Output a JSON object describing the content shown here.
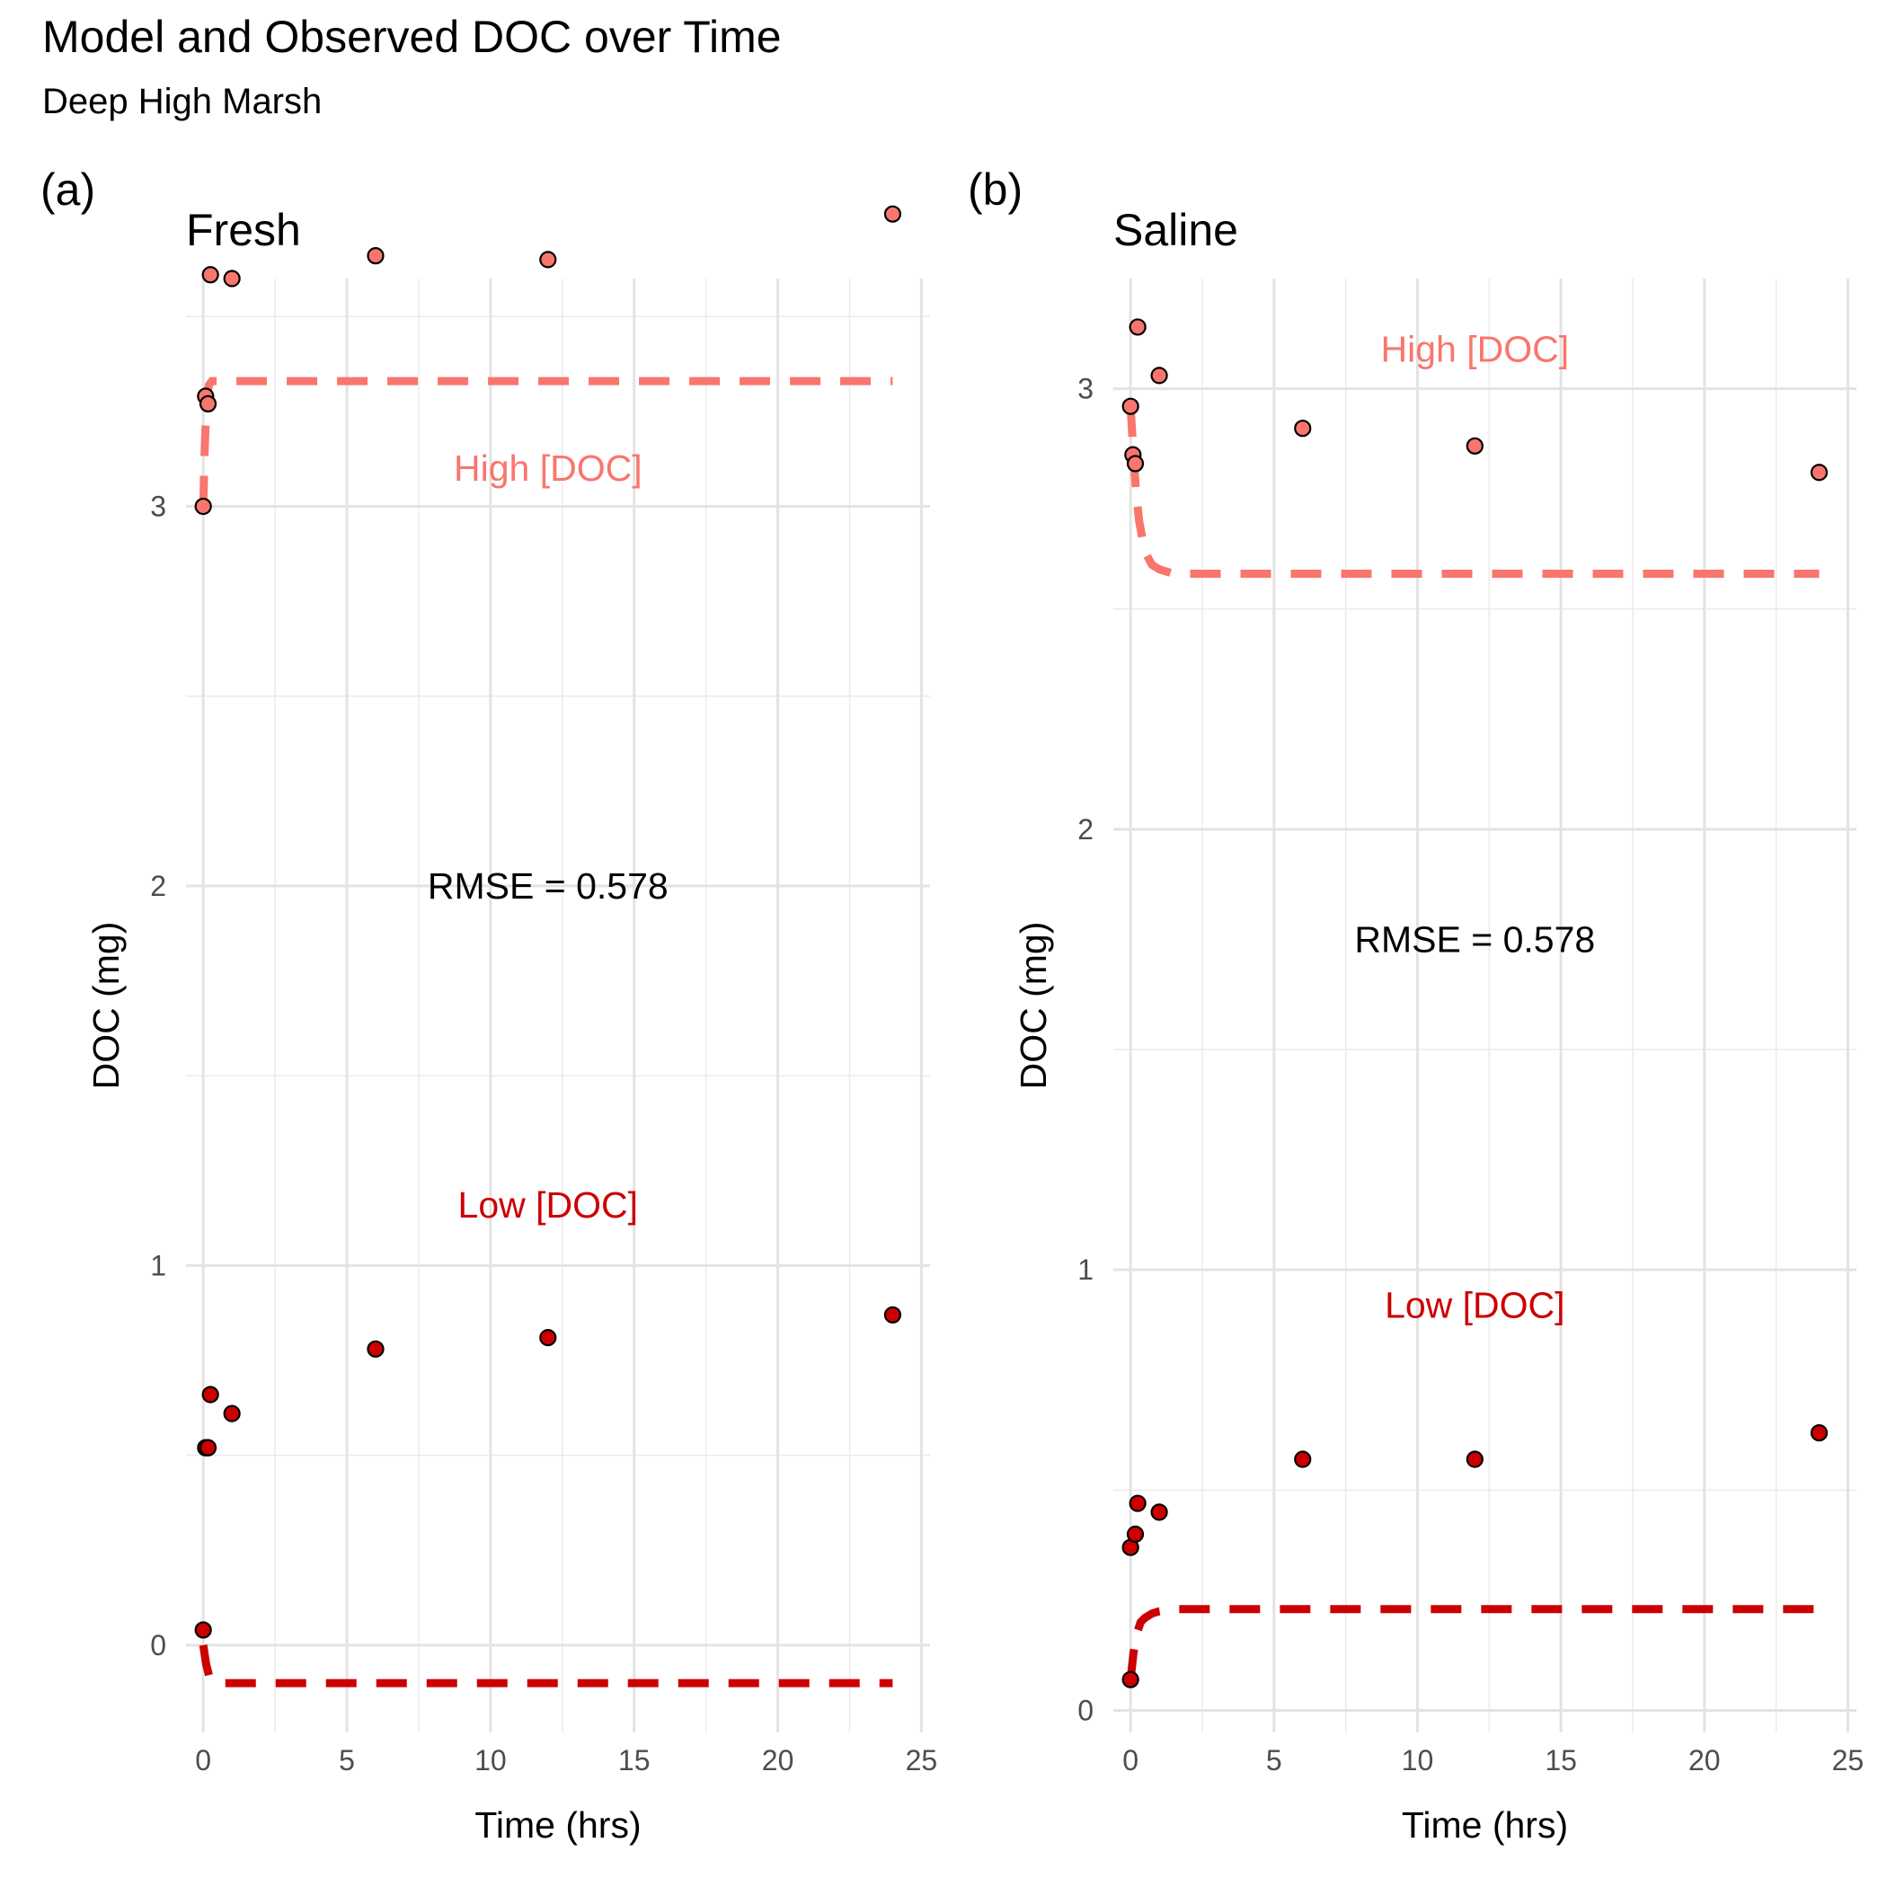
{
  "title": "Model and Observed DOC over Time",
  "subtitle": "Deep High Marsh",
  "chart_data": [
    {
      "type": "scatter",
      "tag": "(a)",
      "title": "Fresh",
      "xlabel": "Time (hrs)",
      "ylabel": "DOC (mg)",
      "xlim": [
        -0.6,
        25.3
      ],
      "ylim": [
        -0.23,
        3.6
      ],
      "x_ticks": [
        0,
        5,
        10,
        15,
        20,
        25
      ],
      "y_ticks": [
        0,
        1,
        2,
        3
      ],
      "x_tick_labels": [
        "0",
        "5",
        "10",
        "15",
        "20",
        "25"
      ],
      "y_tick_labels": [
        "0",
        "1",
        "2",
        "3"
      ],
      "grid": true,
      "rmse_label": "RMSE = 0.578",
      "rmse_pos": [
        12,
        2.0
      ],
      "series": [
        {
          "name": "High [DOC]",
          "color": "#F8766D",
          "label_pos": [
            12,
            3.1
          ],
          "points": [
            [
              0,
              3.0
            ],
            [
              0.083,
              3.29
            ],
            [
              0.167,
              3.27
            ],
            [
              0.25,
              3.61
            ],
            [
              1,
              3.6
            ],
            [
              6,
              3.66
            ],
            [
              12,
              3.65
            ],
            [
              24,
              3.77
            ]
          ],
          "model": [
            [
              0,
              3.0
            ],
            [
              0.05,
              3.15
            ],
            [
              0.1,
              3.25
            ],
            [
              0.15,
              3.3
            ],
            [
              0.2,
              3.32
            ],
            [
              0.3,
              3.33
            ],
            [
              0.5,
              3.33
            ],
            [
              24,
              3.33
            ]
          ]
        },
        {
          "name": "Low [DOC]",
          "color": "#CC0000",
          "label_pos": [
            12,
            1.16
          ],
          "points": [
            [
              0,
              0.04
            ],
            [
              0.083,
              0.52
            ],
            [
              0.167,
              0.52
            ],
            [
              0.25,
              0.66
            ],
            [
              1,
              0.61
            ],
            [
              6,
              0.78
            ],
            [
              12,
              0.81
            ],
            [
              24,
              0.87
            ]
          ],
          "model": [
            [
              0,
              0.0
            ],
            [
              0.1,
              -0.05
            ],
            [
              0.2,
              -0.08
            ],
            [
              0.3,
              -0.09
            ],
            [
              0.5,
              -0.1
            ],
            [
              1,
              -0.1
            ],
            [
              24,
              -0.1
            ]
          ]
        }
      ]
    },
    {
      "type": "scatter",
      "tag": "(b)",
      "title": "Saline",
      "xlabel": "Time (hrs)",
      "ylabel": "DOC (mg)",
      "xlim": [
        -0.6,
        25.3
      ],
      "ylim": [
        -0.05,
        3.25
      ],
      "x_ticks": [
        0,
        5,
        10,
        15,
        20,
        25
      ],
      "y_ticks": [
        0,
        1,
        2,
        3
      ],
      "x_tick_labels": [
        "0",
        "5",
        "10",
        "15",
        "20",
        "25"
      ],
      "y_tick_labels": [
        "0",
        "1",
        "2",
        "3"
      ],
      "grid": true,
      "rmse_label": "RMSE = 0.578",
      "rmse_pos": [
        12,
        1.75
      ],
      "series": [
        {
          "name": "High [DOC]",
          "color": "#F8766D",
          "label_pos": [
            12,
            3.09
          ],
          "points": [
            [
              0,
              2.96
            ],
            [
              0.083,
              2.85
            ],
            [
              0.167,
              2.83
            ],
            [
              0.25,
              3.14
            ],
            [
              1,
              3.03
            ],
            [
              6,
              2.91
            ],
            [
              12,
              2.87
            ],
            [
              24,
              2.81
            ]
          ],
          "model": [
            [
              0,
              2.96
            ],
            [
              0.1,
              2.85
            ],
            [
              0.2,
              2.76
            ],
            [
              0.3,
              2.7
            ],
            [
              0.5,
              2.63
            ],
            [
              0.75,
              2.6
            ],
            [
              1,
              2.59
            ],
            [
              1.5,
              2.58
            ],
            [
              24,
              2.58
            ]
          ]
        },
        {
          "name": "Low [DOC]",
          "color": "#CC0000",
          "label_pos": [
            12,
            0.92
          ],
          "points": [
            [
              0,
              0.07
            ],
            [
              0,
              0.37
            ],
            [
              0.167,
              0.4
            ],
            [
              0.25,
              0.47
            ],
            [
              1,
              0.45
            ],
            [
              6,
              0.57
            ],
            [
              12,
              0.57
            ],
            [
              24,
              0.63
            ]
          ],
          "model": [
            [
              0,
              0.07
            ],
            [
              0.1,
              0.13
            ],
            [
              0.2,
              0.17
            ],
            [
              0.35,
              0.2
            ],
            [
              0.5,
              0.21
            ],
            [
              0.75,
              0.22
            ],
            [
              1,
              0.225
            ],
            [
              1.5,
              0.23
            ],
            [
              24,
              0.23
            ]
          ]
        }
      ]
    }
  ]
}
